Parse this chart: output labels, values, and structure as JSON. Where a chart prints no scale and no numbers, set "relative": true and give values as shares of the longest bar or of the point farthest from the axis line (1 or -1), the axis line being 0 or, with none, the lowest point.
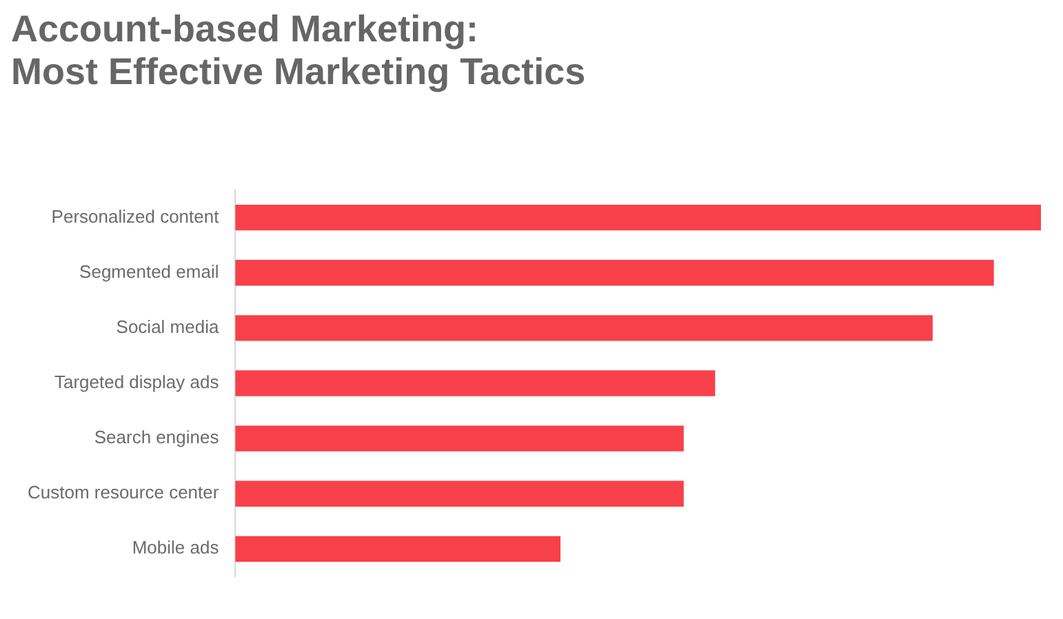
{
  "chart_data": {
    "type": "bar",
    "title": "Account-based Marketing:\nMost Effective Marketing Tactics",
    "orientation": "horizontal",
    "relative": true,
    "categories": [
      "Personalized content",
      "Segmented email",
      "Social media",
      "Targeted display ads",
      "Search engines",
      "Custom resource center",
      "Mobile ads"
    ],
    "values": [
      1,
      0.941,
      0.865,
      0.595,
      0.556,
      0.556,
      0.403
    ],
    "color": "#f7404a"
  }
}
